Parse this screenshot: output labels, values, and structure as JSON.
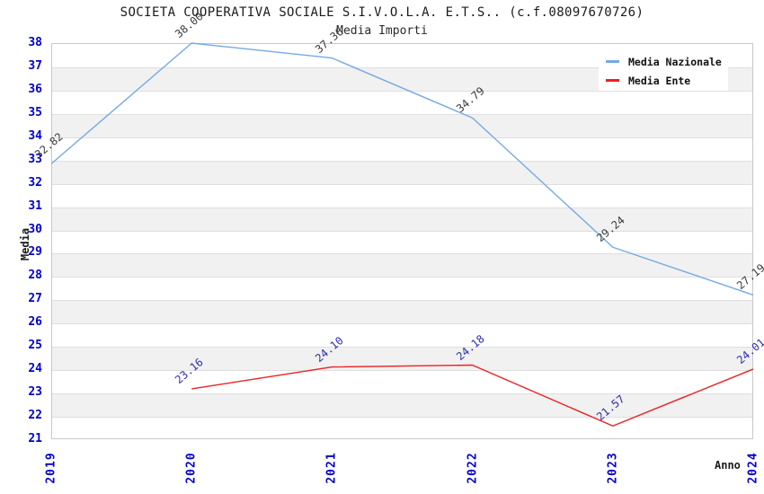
{
  "header": {
    "title": "SOCIETA COOPERATIVA SOCIALE S.I.V.O.L.A. E.T.S.. (c.f.08097670726)",
    "subtitle": "Media Importi"
  },
  "chart_data": {
    "type": "line",
    "title": "SOCIETA COOPERATIVA SOCIALE S.I.V.O.L.A. E.T.S.. (c.f.08097670726)",
    "subtitle": "Media Importi",
    "xlabel": "Anno",
    "ylabel": "Media",
    "categories": [
      "2019",
      "2020",
      "2021",
      "2022",
      "2023",
      "2024"
    ],
    "ylim": [
      21,
      38
    ],
    "y_tick_step": 1,
    "grid": "alternating horizontal bands, light gray gridline each unit",
    "legend_position": "top-right",
    "series": [
      {
        "name": "Media Nazionale",
        "color": "#74AAE3",
        "label_color": "#3a3a3a",
        "values": [
          32.82,
          38.0,
          37.36,
          34.79,
          29.24,
          27.19
        ]
      },
      {
        "name": "Media Ente",
        "color": "#EC2121",
        "label_color": "#2b2bb0",
        "values": [
          null,
          23.16,
          24.1,
          24.18,
          21.57,
          24.01
        ]
      }
    ]
  },
  "colors": {
    "axis_tick": "#0000CC",
    "band_gray": "#F1F1F1",
    "grid_line": "#DFDFDF",
    "frame": "#C8C8C8",
    "title_text": "#1A1A1A"
  }
}
